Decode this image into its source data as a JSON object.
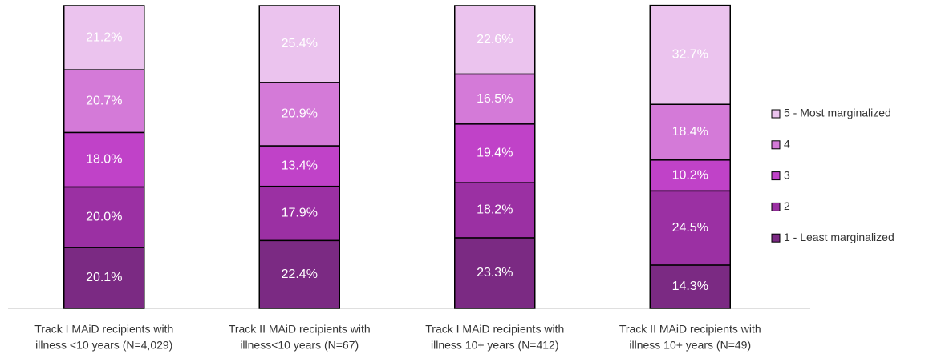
{
  "chart_data": {
    "type": "stacked_bar",
    "categories": [
      [
        "Track I MAiD recipients with",
        "illness <10 years (N=4,029)"
      ],
      [
        "Track II MAiD recipients with",
        "illness<10 years (N=67)"
      ],
      [
        "Track I MAiD recipients with",
        "illness 10+ years (N=412)"
      ],
      [
        "Track II MAiD recipients with",
        "illness 10+ years (N=49)"
      ]
    ],
    "series": [
      {
        "name": "1 - Least marginalized",
        "color": "#7b2a83",
        "values": [
          20.1,
          22.4,
          23.3,
          14.3
        ],
        "value_labels": [
          "20.1%",
          "22.4%",
          "23.3%",
          "14.3%"
        ]
      },
      {
        "name": "2",
        "color": "#9b30a3",
        "values": [
          20.0,
          17.9,
          18.2,
          24.5
        ],
        "value_labels": [
          "20.0%",
          "17.9%",
          "18.2%",
          "24.5%"
        ]
      },
      {
        "name": "3",
        "color": "#c042c8",
        "values": [
          18.0,
          13.4,
          19.4,
          10.2
        ],
        "value_labels": [
          "18.0%",
          "13.4%",
          "19.4%",
          "10.2%"
        ]
      },
      {
        "name": "4",
        "color": "#d47ad8",
        "values": [
          20.7,
          20.9,
          16.5,
          18.4
        ],
        "value_labels": [
          "20.7%",
          "20.9%",
          "16.5%",
          "18.4%"
        ]
      },
      {
        "name": "5 - Most marginalized",
        "color": "#ebc3ee",
        "values": [
          21.2,
          25.4,
          22.6,
          32.7
        ],
        "value_labels": [
          "21.2%",
          "25.4%",
          "22.6%",
          "32.7%"
        ]
      }
    ],
    "ylim": [
      0,
      100
    ],
    "legend": "right"
  }
}
